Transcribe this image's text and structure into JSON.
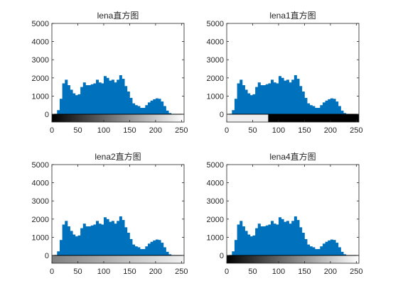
{
  "figure": {
    "background": "#ffffff",
    "bar_color": "#0072bd",
    "axes_color": "#262626"
  },
  "chart_data": [
    {
      "type": "bar",
      "title": "lena直方图",
      "xlim": [
        0,
        255
      ],
      "ylim": [
        0,
        5000
      ],
      "xticks": [
        0,
        50,
        100,
        150,
        200,
        250
      ],
      "yticks": [
        0,
        1000,
        2000,
        3000,
        4000,
        5000
      ],
      "grid": false,
      "colorbar": {
        "orientation": "horizontal",
        "gradient": "black-to-white",
        "direction": "normal"
      },
      "series": [
        {
          "x": [
            0,
            5,
            10,
            15,
            20,
            25,
            30,
            35,
            40,
            45,
            50,
            55,
            60,
            65,
            70,
            75,
            80,
            85,
            90,
            95,
            100,
            105,
            110,
            115,
            120,
            125,
            130,
            135,
            140,
            145,
            150,
            155,
            160,
            165,
            170,
            175,
            180,
            185,
            190,
            195,
            200,
            205,
            210,
            215,
            220,
            225,
            230,
            235,
            240,
            245,
            250,
            255
          ],
          "values": [
            0,
            0,
            50,
            400,
            1300,
            2100,
            1700,
            1500,
            1200,
            1100,
            1000,
            1200,
            1800,
            1700,
            1500,
            1700,
            1600,
            1800,
            2000,
            1500,
            1900,
            2300,
            1700,
            2000,
            1800,
            1700,
            2100,
            2200,
            1700,
            1400,
            1100,
            700,
            500,
            500,
            400,
            300,
            400,
            600,
            700,
            800,
            850,
            900,
            800,
            600,
            300,
            100,
            30,
            0,
            0,
            0,
            0,
            0
          ]
        }
      ]
    },
    {
      "type": "bar",
      "title": "lena1直方图",
      "xlim": [
        0,
        255
      ],
      "ylim": [
        0,
        5000
      ],
      "xticks": [
        0,
        50,
        100,
        150,
        200,
        250
      ],
      "yticks": [
        0,
        1000,
        2000,
        3000,
        4000,
        5000
      ],
      "grid": false,
      "colorbar": {
        "orientation": "horizontal",
        "gradient": "two-step",
        "segments": [
          {
            "from": 0,
            "to": 80,
            "color": "#eeeeee"
          },
          {
            "from": 80,
            "to": 255,
            "color": "#000000"
          }
        ]
      },
      "series": [
        {
          "x": [
            0,
            5,
            10,
            15,
            20,
            25,
            30,
            35,
            40,
            45,
            50,
            55,
            60,
            65,
            70,
            75,
            80,
            85,
            90,
            95,
            100,
            105,
            110,
            115,
            120,
            125,
            130,
            135,
            140,
            145,
            150,
            155,
            160,
            165,
            170,
            175,
            180,
            185,
            190,
            195,
            200,
            205,
            210,
            215,
            220,
            225,
            230,
            235,
            240,
            245,
            250,
            255
          ],
          "values": [
            0,
            0,
            50,
            400,
            1300,
            2100,
            1700,
            1500,
            1200,
            1100,
            1000,
            1200,
            1800,
            1700,
            1500,
            1700,
            1600,
            1800,
            2000,
            1500,
            1900,
            2300,
            1700,
            2000,
            1800,
            1700,
            2100,
            2200,
            1700,
            1400,
            1100,
            700,
            500,
            500,
            400,
            300,
            400,
            600,
            700,
            800,
            850,
            900,
            800,
            600,
            300,
            100,
            30,
            0,
            0,
            0,
            0,
            0
          ]
        }
      ]
    },
    {
      "type": "bar",
      "title": "lena2直方图",
      "xlim": [
        0,
        255
      ],
      "ylim": [
        0,
        5000
      ],
      "xticks": [
        0,
        50,
        100,
        150,
        200,
        250
      ],
      "yticks": [
        0,
        1000,
        2000,
        3000,
        4000,
        5000
      ],
      "grid": false,
      "colorbar": {
        "orientation": "horizontal",
        "gradient": "darkgray-to-white",
        "direction": "normal"
      },
      "series": [
        {
          "x": [
            0,
            5,
            10,
            15,
            20,
            25,
            30,
            35,
            40,
            45,
            50,
            55,
            60,
            65,
            70,
            75,
            80,
            85,
            90,
            95,
            100,
            105,
            110,
            115,
            120,
            125,
            130,
            135,
            140,
            145,
            150,
            155,
            160,
            165,
            170,
            175,
            180,
            185,
            190,
            195,
            200,
            205,
            210,
            215,
            220,
            225,
            230,
            235,
            240,
            245,
            250,
            255
          ],
          "values": [
            0,
            0,
            50,
            400,
            1300,
            2100,
            1700,
            1500,
            1200,
            1100,
            1000,
            1200,
            1800,
            1700,
            1500,
            1700,
            1600,
            1800,
            2000,
            1500,
            1900,
            2300,
            1700,
            2000,
            1800,
            1700,
            2100,
            2200,
            1700,
            1400,
            1100,
            700,
            500,
            500,
            400,
            300,
            400,
            600,
            700,
            800,
            850,
            900,
            800,
            600,
            300,
            100,
            30,
            0,
            0,
            0,
            0,
            0
          ]
        }
      ]
    },
    {
      "type": "bar",
      "title": "lena4直方图",
      "xlim": [
        0,
        255
      ],
      "ylim": [
        0,
        5000
      ],
      "xticks": [
        0,
        50,
        100,
        150,
        200,
        250
      ],
      "yticks": [
        0,
        1000,
        2000,
        3000,
        4000,
        5000
      ],
      "grid": false,
      "colorbar": {
        "orientation": "horizontal",
        "gradient": "black-to-white",
        "direction": "normal"
      },
      "series": [
        {
          "x": [
            0,
            5,
            10,
            15,
            20,
            25,
            30,
            35,
            40,
            45,
            50,
            55,
            60,
            65,
            70,
            75,
            80,
            85,
            90,
            95,
            100,
            105,
            110,
            115,
            120,
            125,
            130,
            135,
            140,
            145,
            150,
            155,
            160,
            165,
            170,
            175,
            180,
            185,
            190,
            195,
            200,
            205,
            210,
            215,
            220,
            225,
            230,
            235,
            240,
            245,
            250,
            255
          ],
          "values": [
            0,
            0,
            50,
            400,
            1300,
            2100,
            1700,
            1500,
            1200,
            1100,
            1000,
            1200,
            1800,
            1700,
            1500,
            1700,
            1600,
            1800,
            2000,
            1500,
            1900,
            2300,
            1700,
            2000,
            1800,
            1700,
            2100,
            2200,
            1700,
            1400,
            1100,
            700,
            500,
            500,
            400,
            300,
            400,
            600,
            700,
            800,
            850,
            900,
            800,
            600,
            300,
            100,
            30,
            0,
            0,
            0,
            0,
            0
          ]
        }
      ]
    }
  ]
}
